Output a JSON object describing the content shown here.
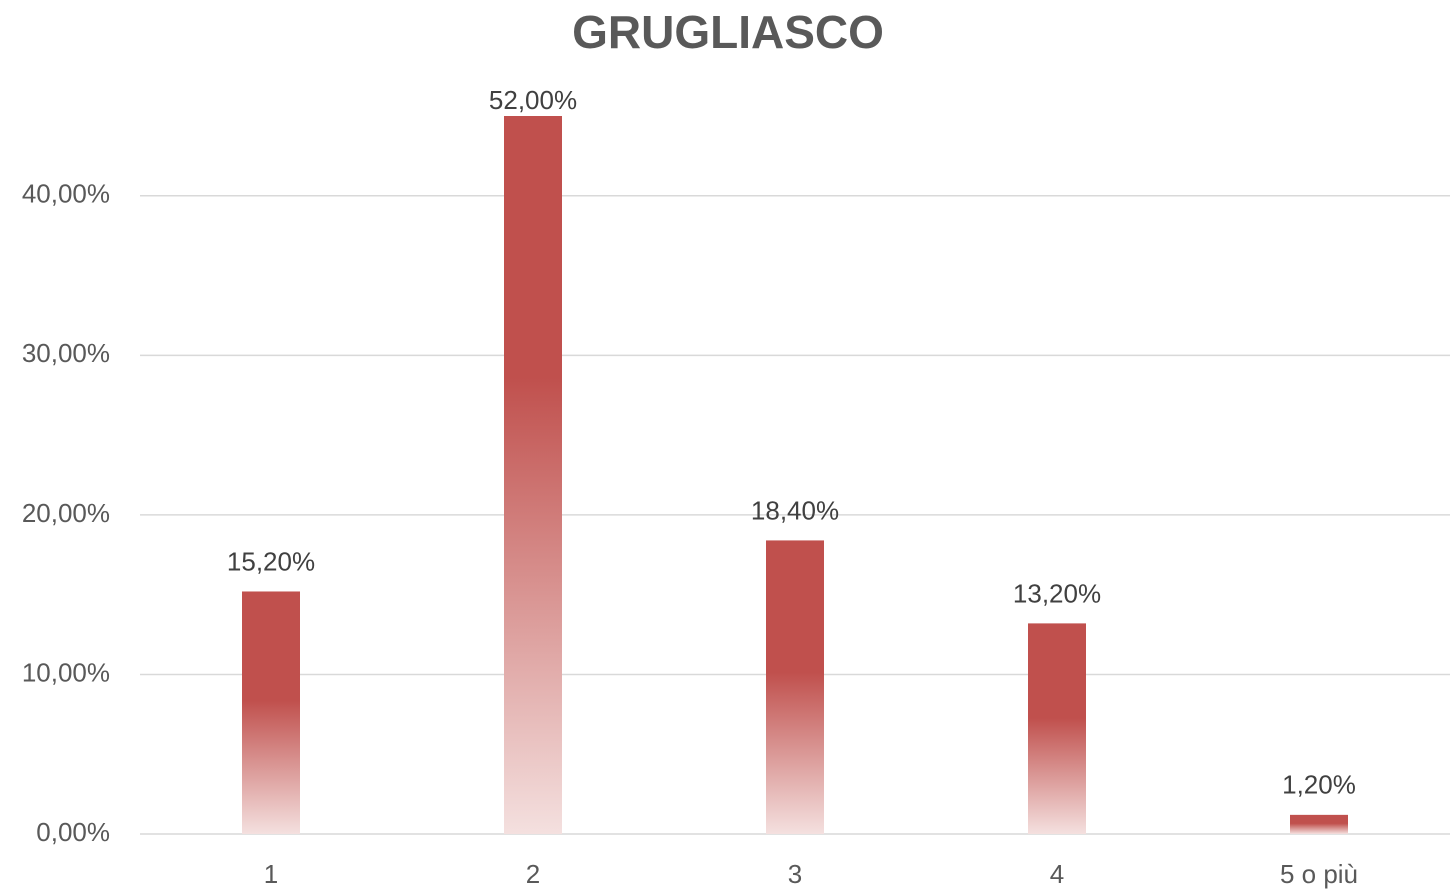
{
  "chart_data": {
    "type": "bar",
    "title": "GRUGLIASCO",
    "categories": [
      "1",
      "2",
      "3",
      "4",
      "5 o più"
    ],
    "values": [
      15.2,
      52,
      18.4,
      13.2,
      1.2
    ],
    "value_labels": [
      "15,20%",
      "52,00%",
      "18,40%",
      "13,20%",
      "1,20%"
    ],
    "color": "#c0504d",
    "ylim": [
      0,
      45
    ],
    "yticks": [
      {
        "value": 0,
        "label": "0,00%"
      },
      {
        "value": 10,
        "label": "10,00%"
      },
      {
        "value": 20,
        "label": "20,00%"
      },
      {
        "value": 30,
        "label": "30,00%"
      },
      {
        "value": 40,
        "label": "40,00%"
      }
    ],
    "grid": true
  }
}
